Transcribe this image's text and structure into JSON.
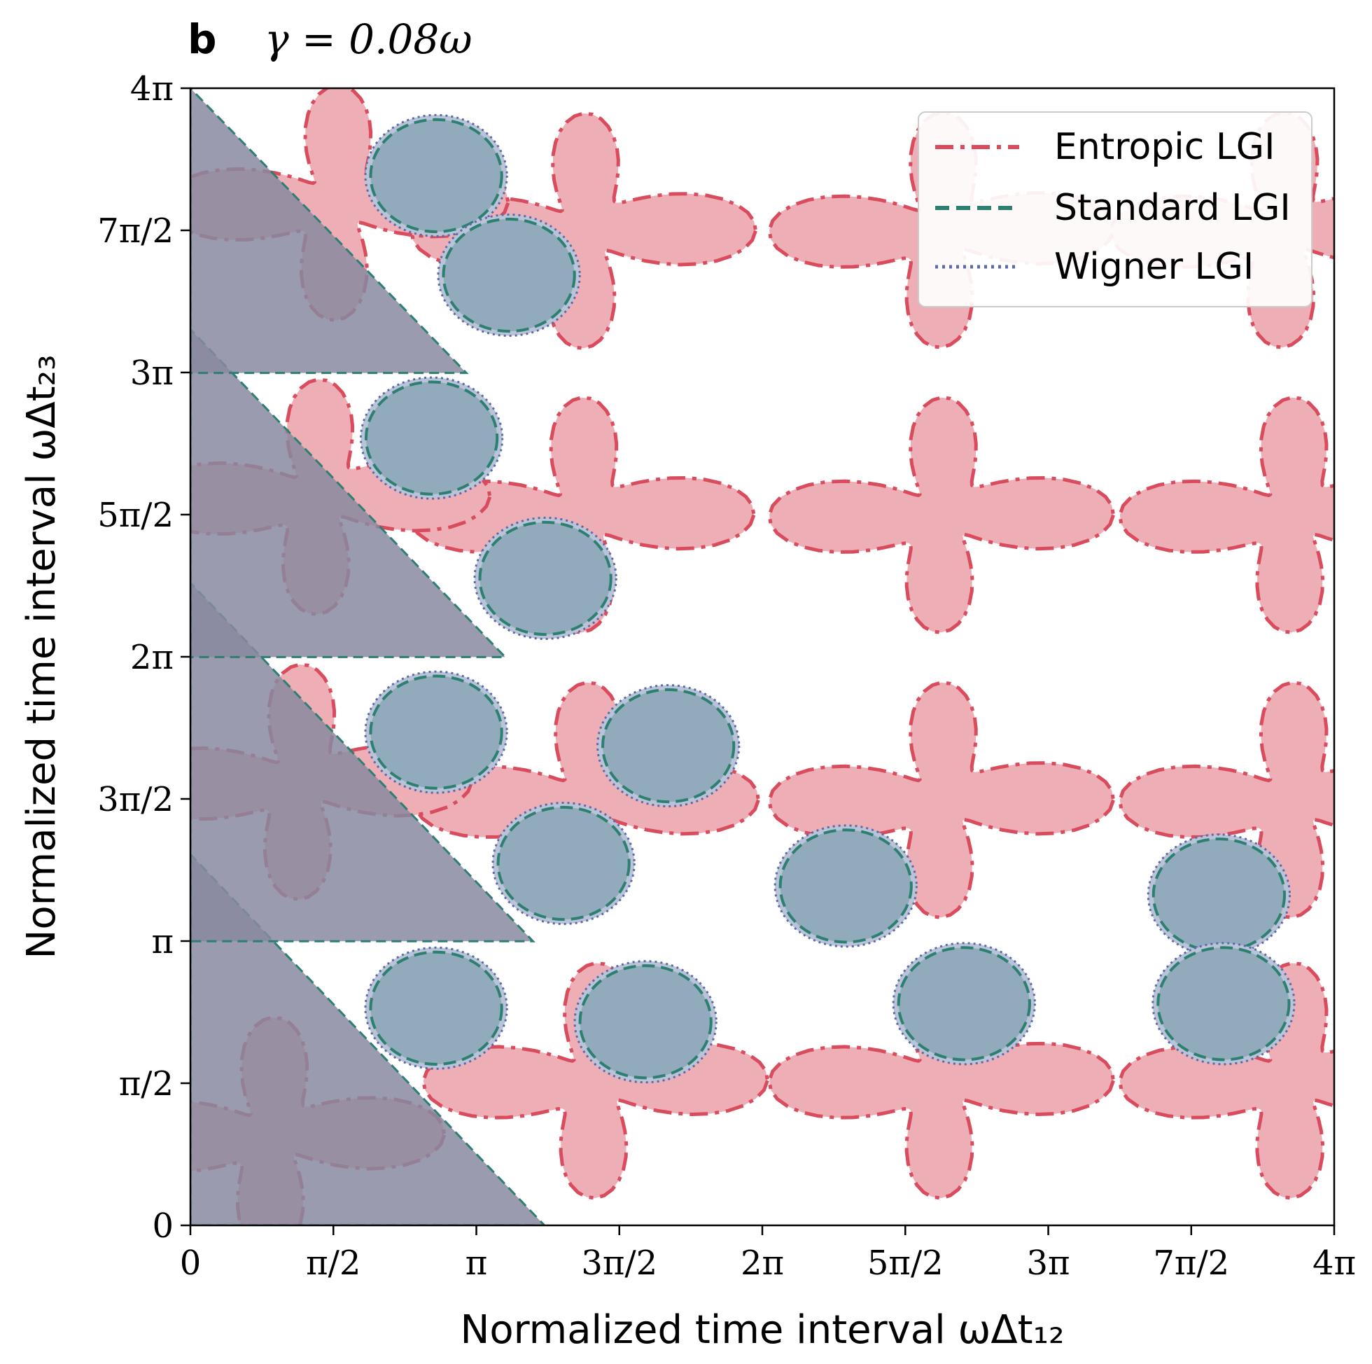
{
  "chart_data": {
    "type": "contour",
    "panel_label": "b",
    "title": "γ = 0.08ω",
    "xlabel": "Normalized time interval ωΔt₁₂",
    "ylabel": "Normalized time interval ωΔt₂₃",
    "xlim": [
      0,
      12.566
    ],
    "ylim": [
      0,
      12.566
    ],
    "x_ticks": [
      {
        "value": 0,
        "label": "0"
      },
      {
        "value": 1.5708,
        "label": "π/2"
      },
      {
        "value": 3.1416,
        "label": "π"
      },
      {
        "value": 4.7124,
        "label": "3π/2"
      },
      {
        "value": 6.2832,
        "label": "2π"
      },
      {
        "value": 7.854,
        "label": "5π/2"
      },
      {
        "value": 9.4248,
        "label": "3π"
      },
      {
        "value": 10.9956,
        "label": "7π/2"
      },
      {
        "value": 12.566,
        "label": "4π"
      }
    ],
    "y_ticks": [
      {
        "value": 0,
        "label": "0"
      },
      {
        "value": 1.5708,
        "label": "π/2"
      },
      {
        "value": 3.1416,
        "label": "π"
      },
      {
        "value": 4.7124,
        "label": "3π/2"
      },
      {
        "value": 6.2832,
        "label": "2π"
      },
      {
        "value": 7.854,
        "label": "5π/2"
      },
      {
        "value": 9.4248,
        "label": "3π"
      },
      {
        "value": 10.9956,
        "label": "7π/2"
      },
      {
        "value": 12.566,
        "label": "4π"
      }
    ],
    "legend": {
      "position": "top-right",
      "entries": [
        {
          "label": "Entropic LGI",
          "color": "#d84c5e",
          "style": "dashdot"
        },
        {
          "label": "Standard LGI",
          "color": "#2d7f72",
          "style": "dashed"
        },
        {
          "label": "Wigner LGI",
          "color": "#5b6aa8",
          "style": "dotted"
        }
      ]
    },
    "colors": {
      "entropic_fill": "#eeaeb5",
      "entropic_line": "#d84c5e",
      "standard_fill": "#8faabb",
      "standard_line": "#2d7f72",
      "wigner_fill": "#b9c4d8",
      "wigner_line": "#5b6aa8",
      "overlap_fill": "#888aa0"
    },
    "regions": {
      "entropic_stars": [
        {
          "cx": 4.32,
          "cy": 10.99
        },
        {
          "cx": 8.25,
          "cy": 11.0
        },
        {
          "cx": 12.0,
          "cy": 11.0
        },
        {
          "cx": 1.6,
          "cy": 11.3
        },
        {
          "cx": 4.3,
          "cy": 7.85
        },
        {
          "cx": 8.25,
          "cy": 7.85
        },
        {
          "cx": 12.1,
          "cy": 7.85
        },
        {
          "cx": 1.4,
          "cy": 8.05
        },
        {
          "cx": 4.35,
          "cy": 4.7
        },
        {
          "cx": 8.25,
          "cy": 4.7
        },
        {
          "cx": 12.1,
          "cy": 4.7
        },
        {
          "cx": 1.2,
          "cy": 4.9
        },
        {
          "cx": 4.45,
          "cy": 1.6
        },
        {
          "cx": 8.25,
          "cy": 1.6
        },
        {
          "cx": 12.1,
          "cy": 1.6
        },
        {
          "cx": 0.9,
          "cy": 1.0
        }
      ],
      "standard_blobs": [
        {
          "cx": 2.7,
          "cy": 11.6
        },
        {
          "cx": 3.5,
          "cy": 10.5
        },
        {
          "cx": 2.65,
          "cy": 8.7
        },
        {
          "cx": 3.9,
          "cy": 7.15
        },
        {
          "cx": 2.7,
          "cy": 5.45
        },
        {
          "cx": 4.1,
          "cy": 4.0
        },
        {
          "cx": 5.25,
          "cy": 5.3
        },
        {
          "cx": 7.2,
          "cy": 3.75
        },
        {
          "cx": 11.3,
          "cy": 3.65
        },
        {
          "cx": 2.7,
          "cy": 2.4
        },
        {
          "cx": 5.0,
          "cy": 2.25
        },
        {
          "cx": 8.5,
          "cy": 2.45
        },
        {
          "cx": 11.35,
          "cy": 2.45
        }
      ]
    }
  }
}
